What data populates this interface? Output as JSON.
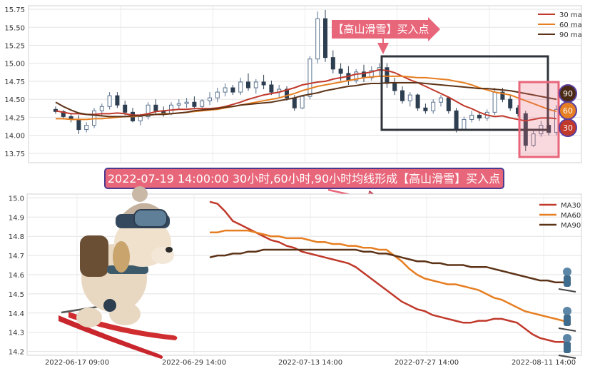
{
  "chart_data": [
    {
      "type": "line",
      "subtype": "candlestick-with-moving-averages",
      "title": "",
      "xlabel": "",
      "ylabel": "",
      "ylim": [
        13.62,
        15.8
      ],
      "y_ticks": [
        "13.75",
        "14.00",
        "14.25",
        "14.50",
        "14.75",
        "15.00",
        "15.25",
        "15.50",
        "15.75"
      ],
      "grid": true,
      "legend": {
        "placement": "top-right",
        "entries": [
          "30 ma",
          "60 ma",
          "90 ma"
        ]
      },
      "candle_colors": {
        "up": "#5b7390",
        "down": "#2c3e50"
      },
      "series": [
        {
          "name": "30 ma",
          "color": "#c0392b",
          "values": [
            14.34,
            14.32,
            14.3,
            14.3,
            14.29,
            14.29,
            14.3,
            14.3,
            14.31,
            14.3,
            14.28,
            14.28,
            14.3,
            14.33,
            14.34,
            14.35,
            14.36,
            14.36,
            14.37,
            14.37,
            14.37,
            14.38,
            14.4,
            14.43,
            14.46,
            14.5,
            14.53,
            14.56,
            14.58,
            14.6,
            14.63,
            14.66,
            14.7,
            14.72,
            14.74,
            14.75,
            14.78,
            14.8,
            14.82,
            14.85,
            14.86,
            14.88,
            14.91,
            14.9,
            14.87,
            14.82,
            14.77,
            14.73,
            14.68,
            14.63,
            14.58,
            14.53,
            14.47,
            14.41,
            14.37,
            14.32,
            14.28,
            14.26,
            14.27,
            14.24,
            14.22,
            14.2,
            14.22,
            14.24,
            14.24,
            14.23
          ]
        },
        {
          "name": "60 ma",
          "color": "#e67e22",
          "values": [
            14.23,
            14.23,
            14.22,
            14.22,
            14.22,
            14.23,
            14.23,
            14.24,
            14.25,
            14.26,
            14.26,
            14.27,
            14.28,
            14.29,
            14.3,
            14.3,
            14.31,
            14.32,
            14.33,
            14.34,
            14.35,
            14.36,
            14.38,
            14.4,
            14.42,
            14.44,
            14.46,
            14.48,
            14.5,
            14.52,
            14.55,
            14.58,
            14.62,
            14.65,
            14.68,
            14.7,
            14.72,
            14.74,
            14.76,
            14.78,
            14.8,
            14.81,
            14.82,
            14.82,
            14.82,
            14.82,
            14.81,
            14.8,
            14.8,
            14.79,
            14.78,
            14.77,
            14.75,
            14.73,
            14.7,
            14.66,
            14.63,
            14.6,
            14.58,
            14.56,
            14.52,
            14.48,
            14.44,
            14.4,
            14.36,
            14.33
          ]
        },
        {
          "name": "90 ma",
          "color": "#5d3317",
          "values": [
            14.46,
            14.4,
            14.35,
            14.31,
            14.29,
            14.28,
            14.27,
            14.26,
            14.26,
            14.26,
            14.27,
            14.27,
            14.28,
            14.29,
            14.29,
            14.3,
            14.31,
            14.32,
            14.34,
            14.35,
            14.36,
            14.37,
            14.39,
            14.4,
            14.42,
            14.43,
            14.44,
            14.45,
            14.46,
            14.48,
            14.5,
            14.52,
            14.55,
            14.57,
            14.59,
            14.62,
            14.64,
            14.66,
            14.68,
            14.69,
            14.71,
            14.72,
            14.72,
            14.73,
            14.73,
            14.73,
            14.73,
            14.73,
            14.72,
            14.71,
            14.7,
            14.69,
            14.68,
            14.67,
            14.66,
            14.65,
            14.65,
            14.64,
            14.63,
            14.62,
            14.6,
            14.58,
            14.56,
            14.54,
            14.52,
            14.5
          ]
        }
      ],
      "candles_ohlc": [
        [
          14.36,
          14.4,
          14.3,
          14.33
        ],
        [
          14.33,
          14.35,
          14.22,
          14.26
        ],
        [
          14.26,
          14.3,
          14.18,
          14.22
        ],
        [
          14.22,
          14.28,
          14.02,
          14.08
        ],
        [
          14.08,
          14.18,
          14.04,
          14.14
        ],
        [
          14.14,
          14.38,
          14.1,
          14.34
        ],
        [
          14.34,
          14.44,
          14.26,
          14.4
        ],
        [
          14.4,
          14.6,
          14.36,
          14.55
        ],
        [
          14.55,
          14.6,
          14.38,
          14.42
        ],
        [
          14.42,
          14.48,
          14.28,
          14.32
        ],
        [
          14.32,
          14.38,
          14.18,
          14.2
        ],
        [
          14.2,
          14.3,
          14.14,
          14.26
        ],
        [
          14.26,
          14.46,
          14.22,
          14.42
        ],
        [
          14.42,
          14.5,
          14.3,
          14.34
        ],
        [
          14.34,
          14.4,
          14.26,
          14.3
        ],
        [
          14.3,
          14.46,
          14.28,
          14.42
        ],
        [
          14.42,
          14.5,
          14.36,
          14.44
        ],
        [
          14.44,
          14.52,
          14.38,
          14.46
        ],
        [
          14.46,
          14.54,
          14.36,
          14.4
        ],
        [
          14.4,
          14.5,
          14.34,
          14.48
        ],
        [
          14.48,
          14.6,
          14.42,
          14.52
        ],
        [
          14.52,
          14.66,
          14.46,
          14.6
        ],
        [
          14.6,
          14.72,
          14.54,
          14.66
        ],
        [
          14.66,
          14.7,
          14.56,
          14.6
        ],
        [
          14.6,
          14.8,
          14.56,
          14.74
        ],
        [
          14.74,
          14.86,
          14.62,
          14.66
        ],
        [
          14.66,
          14.78,
          14.58,
          14.74
        ],
        [
          14.74,
          14.84,
          14.64,
          14.7
        ],
        [
          14.7,
          14.76,
          14.56,
          14.6
        ],
        [
          14.6,
          14.7,
          14.52,
          14.64
        ],
        [
          14.64,
          14.68,
          14.48,
          14.52
        ],
        [
          14.52,
          14.56,
          14.34,
          14.38
        ],
        [
          14.38,
          14.56,
          14.36,
          14.54
        ],
        [
          14.54,
          15.1,
          14.5,
          15.06
        ],
        [
          15.06,
          15.72,
          15.0,
          15.62
        ],
        [
          15.62,
          15.74,
          15.02,
          15.08
        ],
        [
          15.08,
          15.18,
          14.86,
          14.92
        ],
        [
          14.92,
          15.0,
          14.76,
          14.86
        ],
        [
          14.86,
          14.96,
          14.7,
          14.76
        ],
        [
          14.76,
          14.92,
          14.72,
          14.88
        ],
        [
          14.88,
          14.98,
          14.74,
          14.8
        ],
        [
          14.8,
          14.96,
          14.76,
          14.9
        ],
        [
          14.9,
          15.0,
          14.82,
          14.94
        ],
        [
          14.94,
          15.0,
          14.66,
          14.72
        ],
        [
          14.72,
          14.8,
          14.56,
          14.62
        ],
        [
          14.62,
          14.68,
          14.44,
          14.48
        ],
        [
          14.48,
          14.6,
          14.4,
          14.56
        ],
        [
          14.56,
          14.58,
          14.34,
          14.38
        ],
        [
          14.38,
          14.44,
          14.3,
          14.34
        ],
        [
          14.34,
          14.5,
          14.3,
          14.46
        ],
        [
          14.46,
          14.56,
          14.4,
          14.52
        ],
        [
          14.52,
          14.54,
          14.3,
          14.34
        ],
        [
          14.34,
          14.38,
          14.04,
          14.08
        ],
        [
          14.08,
          14.26,
          14.06,
          14.22
        ],
        [
          14.22,
          14.34,
          14.18,
          14.28
        ],
        [
          14.28,
          14.32,
          14.2,
          14.24
        ],
        [
          14.24,
          14.36,
          14.2,
          14.32
        ],
        [
          14.32,
          14.66,
          14.28,
          14.6
        ],
        [
          14.6,
          14.66,
          14.46,
          14.5
        ],
        [
          14.5,
          14.56,
          14.34,
          14.38
        ],
        [
          14.38,
          14.42,
          14.26,
          14.3
        ],
        [
          14.3,
          14.34,
          13.78,
          13.86
        ],
        [
          13.86,
          14.06,
          13.84,
          14.02
        ],
        [
          14.02,
          14.2,
          13.98,
          14.14
        ],
        [
          14.14,
          14.18,
          14.0,
          14.04
        ],
        [
          14.04,
          14.42,
          14.0,
          14.36
        ]
      ],
      "annotations": [
        "【高山滑雪】买入点"
      ],
      "ma_labels": [
        "90",
        "60",
        "30"
      ]
    },
    {
      "type": "line",
      "title": "",
      "xlabel": "",
      "ylabel": "",
      "ylim": [
        14.18,
        15.02
      ],
      "y_ticks": [
        "14.2",
        "14.3",
        "14.4",
        "14.5",
        "14.6",
        "14.7",
        "14.8",
        "14.9",
        "15.0"
      ],
      "x_ticks": [
        "2022-06-17 09:00",
        "2022-06-29 14:00",
        "2022-07-13 14:00",
        "2022-07-27 14:00",
        "2022-08-11 14:00"
      ],
      "grid": true,
      "legend": {
        "placement": "top-right",
        "entries": [
          "MA30",
          "MA60",
          "MA90"
        ]
      },
      "series": [
        {
          "name": "MA30",
          "color": "#c0392b",
          "values": [
            14.98,
            14.97,
            14.93,
            14.88,
            14.86,
            14.84,
            14.82,
            14.8,
            14.78,
            14.77,
            14.75,
            14.74,
            14.72,
            14.71,
            14.7,
            14.69,
            14.68,
            14.67,
            14.66,
            14.64,
            14.61,
            14.58,
            14.55,
            14.52,
            14.49,
            14.46,
            14.44,
            14.42,
            14.41,
            14.39,
            14.38,
            14.37,
            14.36,
            14.35,
            14.35,
            14.36,
            14.36,
            14.37,
            14.37,
            14.36,
            14.35,
            14.32,
            14.29,
            14.27,
            14.26,
            14.25,
            14.25,
            14.24
          ]
        },
        {
          "name": "MA60",
          "color": "#e67e22",
          "values": [
            14.82,
            14.82,
            14.83,
            14.83,
            14.83,
            14.83,
            14.82,
            14.81,
            14.8,
            14.8,
            14.79,
            14.79,
            14.79,
            14.78,
            14.77,
            14.77,
            14.76,
            14.76,
            14.75,
            14.75,
            14.74,
            14.74,
            14.73,
            14.73,
            14.7,
            14.67,
            14.63,
            14.6,
            14.58,
            14.57,
            14.56,
            14.55,
            14.55,
            14.54,
            14.53,
            14.52,
            14.5,
            14.48,
            14.47,
            14.45,
            14.43,
            14.41,
            14.4,
            14.39,
            14.38,
            14.37,
            14.36,
            14.34
          ]
        },
        {
          "name": "MA90",
          "color": "#5d3317",
          "values": [
            14.69,
            14.7,
            14.7,
            14.71,
            14.71,
            14.72,
            14.72,
            14.73,
            14.73,
            14.73,
            14.73,
            14.73,
            14.73,
            14.73,
            14.73,
            14.73,
            14.73,
            14.73,
            14.73,
            14.73,
            14.72,
            14.72,
            14.71,
            14.71,
            14.7,
            14.69,
            14.68,
            14.67,
            14.67,
            14.66,
            14.66,
            14.65,
            14.65,
            14.65,
            14.64,
            14.64,
            14.64,
            14.63,
            14.62,
            14.61,
            14.6,
            14.59,
            14.58,
            14.57,
            14.57,
            14.56,
            14.56,
            14.55
          ]
        }
      ],
      "annotation": "2022-07-19 14:00:00 30小时,60小时,90小时均线形成【高山滑雪】买入点"
    }
  ],
  "colors": {
    "annotation_bg": "#e8667a",
    "annotation_border": "#4a3b8f",
    "pink_zone": "#e8667a",
    "frame": "#2f353b"
  },
  "illustrations": {
    "mascot": "skiing-dog-illustration",
    "skiers": "small-skier-icons"
  }
}
